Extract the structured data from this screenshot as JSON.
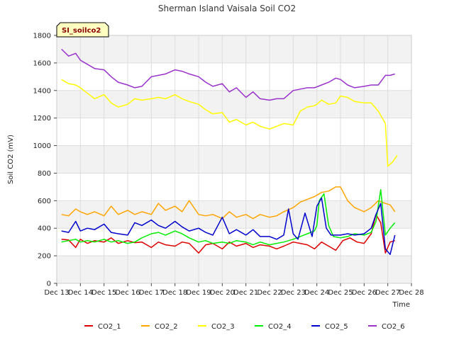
{
  "chart_data": {
    "type": "line",
    "title": "Sherman Island Vaisala Soil CO2",
    "xlabel": "Time",
    "ylabel": "Soil CO2 (mV)",
    "badge": "SI_soilco2",
    "xlim": [
      13,
      28
    ],
    "ylim": [
      0,
      1800
    ],
    "x_ticks": [
      {
        "value": 13,
        "label": "Dec 13"
      },
      {
        "value": 14,
        "label": "Dec 14"
      },
      {
        "value": 15,
        "label": "Dec 15"
      },
      {
        "value": 16,
        "label": "Dec 16"
      },
      {
        "value": 17,
        "label": "Dec 17"
      },
      {
        "value": 18,
        "label": "Dec 18"
      },
      {
        "value": 19,
        "label": "Dec 19"
      },
      {
        "value": 20,
        "label": "Dec 20"
      },
      {
        "value": 21,
        "label": "Dec 21"
      },
      {
        "value": 22,
        "label": "Dec 22"
      },
      {
        "value": 23,
        "label": "Dec 23"
      },
      {
        "value": 24,
        "label": "Dec 24"
      },
      {
        "value": 25,
        "label": "Dec 25"
      },
      {
        "value": 26,
        "label": "Dec 26"
      },
      {
        "value": 27,
        "label": "Dec 27"
      },
      {
        "value": 28,
        "label": "Dec 28"
      }
    ],
    "y_ticks": [
      0,
      200,
      400,
      600,
      800,
      1000,
      1200,
      1400,
      1600,
      1800
    ],
    "grid": true,
    "banded_background": true,
    "legend_position": "bottom",
    "series": [
      {
        "name": "CO2_1",
        "color": "#dd0000",
        "x": [
          13.2,
          13.5,
          13.8,
          14.0,
          14.3,
          14.6,
          15.0,
          15.3,
          15.6,
          16.0,
          16.3,
          16.6,
          17.0,
          17.3,
          17.6,
          18.0,
          18.3,
          18.6,
          19.0,
          19.3,
          19.6,
          20.0,
          20.3,
          20.6,
          21.0,
          21.3,
          21.6,
          22.0,
          22.3,
          22.6,
          23.0,
          23.3,
          23.6,
          23.9,
          24.2,
          24.5,
          24.8,
          25.1,
          25.4,
          25.7,
          26.0,
          26.3,
          26.5,
          26.7,
          26.9,
          27.1,
          27.3
        ],
        "y": [
          320,
          315,
          260,
          320,
          290,
          310,
          300,
          330,
          290,
          310,
          295,
          300,
          260,
          300,
          280,
          270,
          300,
          290,
          220,
          280,
          290,
          250,
          300,
          270,
          290,
          260,
          280,
          270,
          250,
          270,
          300,
          290,
          280,
          250,
          300,
          270,
          240,
          310,
          330,
          300,
          290,
          360,
          500,
          440,
          220,
          300,
          310
        ]
      },
      {
        "name": "CO2_2",
        "color": "#ffa500",
        "x": [
          13.2,
          13.5,
          13.8,
          14.0,
          14.3,
          14.6,
          15.0,
          15.3,
          15.6,
          16.0,
          16.3,
          16.6,
          17.0,
          17.3,
          17.6,
          18.0,
          18.3,
          18.6,
          19.0,
          19.3,
          19.6,
          20.0,
          20.3,
          20.6,
          21.0,
          21.3,
          21.6,
          22.0,
          22.3,
          22.6,
          23.0,
          23.3,
          23.6,
          23.9,
          24.2,
          24.5,
          24.8,
          25.0,
          25.3,
          25.6,
          26.0,
          26.3,
          26.6,
          26.9,
          27.1,
          27.3
        ],
        "y": [
          500,
          490,
          540,
          520,
          500,
          520,
          490,
          560,
          500,
          530,
          500,
          520,
          500,
          580,
          530,
          560,
          520,
          600,
          500,
          490,
          500,
          470,
          520,
          480,
          500,
          470,
          500,
          480,
          490,
          520,
          550,
          590,
          610,
          630,
          660,
          670,
          700,
          700,
          600,
          550,
          520,
          550,
          600,
          580,
          570,
          520
        ]
      },
      {
        "name": "CO2_3",
        "color": "#ffff00",
        "x": [
          13.2,
          13.5,
          13.8,
          14.0,
          14.3,
          14.6,
          15.0,
          15.3,
          15.6,
          16.0,
          16.3,
          16.6,
          17.0,
          17.3,
          17.6,
          18.0,
          18.3,
          18.6,
          19.0,
          19.3,
          19.6,
          20.0,
          20.3,
          20.6,
          21.0,
          21.3,
          21.6,
          22.0,
          22.3,
          22.6,
          23.0,
          23.3,
          23.6,
          23.9,
          24.0,
          24.2,
          24.5,
          24.8,
          25.0,
          25.3,
          25.6,
          26.0,
          26.3,
          26.6,
          26.9,
          27.0,
          27.2,
          27.4
        ],
        "y": [
          1480,
          1450,
          1440,
          1420,
          1380,
          1340,
          1370,
          1310,
          1280,
          1300,
          1340,
          1330,
          1340,
          1350,
          1340,
          1370,
          1340,
          1320,
          1300,
          1260,
          1230,
          1240,
          1170,
          1190,
          1150,
          1170,
          1140,
          1120,
          1140,
          1160,
          1150,
          1250,
          1280,
          1290,
          1300,
          1330,
          1300,
          1310,
          1360,
          1350,
          1320,
          1310,
          1310,
          1250,
          1160,
          850,
          880,
          930
        ]
      },
      {
        "name": "CO2_4",
        "color": "#00ee00",
        "x": [
          13.2,
          13.5,
          13.8,
          14.0,
          14.3,
          14.6,
          15.0,
          15.3,
          15.6,
          16.0,
          16.3,
          16.6,
          17.0,
          17.3,
          17.6,
          18.0,
          18.3,
          18.6,
          19.0,
          19.3,
          19.6,
          20.0,
          20.3,
          20.6,
          21.0,
          21.3,
          21.6,
          22.0,
          22.3,
          22.6,
          23.0,
          23.3,
          23.6,
          23.9,
          24.0,
          24.1,
          24.3,
          24.5,
          24.7,
          25.0,
          25.3,
          25.6,
          26.0,
          26.3,
          26.5,
          26.7,
          26.9,
          27.1,
          27.3
        ],
        "y": [
          300,
          310,
          320,
          300,
          310,
          300,
          320,
          300,
          310,
          290,
          300,
          330,
          360,
          370,
          350,
          380,
          360,
          330,
          300,
          310,
          290,
          300,
          290,
          310,
          300,
          280,
          300,
          280,
          290,
          300,
          320,
          340,
          360,
          380,
          420,
          600,
          650,
          420,
          340,
          330,
          340,
          360,
          350,
          370,
          450,
          680,
          350,
          400,
          440
        ]
      },
      {
        "name": "CO2_5",
        "color": "#0000cc",
        "x": [
          13.2,
          13.5,
          13.8,
          14.0,
          14.3,
          14.6,
          15.0,
          15.3,
          15.6,
          16.0,
          16.3,
          16.6,
          17.0,
          17.3,
          17.6,
          18.0,
          18.3,
          18.6,
          19.0,
          19.3,
          19.6,
          20.0,
          20.3,
          20.6,
          21.0,
          21.3,
          21.6,
          22.0,
          22.3,
          22.6,
          22.8,
          23.0,
          23.2,
          23.5,
          23.8,
          24.0,
          24.2,
          24.4,
          24.6,
          25.0,
          25.3,
          25.6,
          26.0,
          26.3,
          26.5,
          26.7,
          26.9,
          27.1,
          27.3
        ],
        "y": [
          380,
          370,
          450,
          380,
          400,
          390,
          430,
          370,
          360,
          350,
          440,
          420,
          460,
          420,
          400,
          450,
          410,
          380,
          400,
          370,
          350,
          480,
          360,
          390,
          350,
          390,
          340,
          340,
          320,
          350,
          540,
          360,
          320,
          510,
          340,
          560,
          620,
          400,
          350,
          350,
          360,
          350,
          360,
          400,
          500,
          580,
          250,
          210,
          350
        ]
      },
      {
        "name": "CO2_6",
        "color": "#9932cc",
        "x": [
          13.2,
          13.5,
          13.8,
          14.0,
          14.3,
          14.6,
          15.0,
          15.3,
          15.6,
          16.0,
          16.3,
          16.6,
          17.0,
          17.3,
          17.6,
          18.0,
          18.3,
          18.6,
          19.0,
          19.3,
          19.6,
          20.0,
          20.3,
          20.6,
          21.0,
          21.3,
          21.6,
          22.0,
          22.3,
          22.6,
          23.0,
          23.3,
          23.6,
          23.9,
          24.2,
          24.5,
          24.8,
          25.0,
          25.3,
          25.6,
          26.0,
          26.3,
          26.6,
          26.9,
          27.1,
          27.3
        ],
        "y": [
          1700,
          1650,
          1670,
          1620,
          1590,
          1560,
          1550,
          1500,
          1460,
          1440,
          1420,
          1430,
          1500,
          1510,
          1520,
          1550,
          1540,
          1520,
          1500,
          1460,
          1430,
          1450,
          1390,
          1420,
          1350,
          1390,
          1340,
          1330,
          1340,
          1340,
          1400,
          1410,
          1420,
          1420,
          1440,
          1460,
          1490,
          1480,
          1440,
          1420,
          1430,
          1440,
          1440,
          1510,
          1510,
          1520
        ]
      }
    ]
  }
}
